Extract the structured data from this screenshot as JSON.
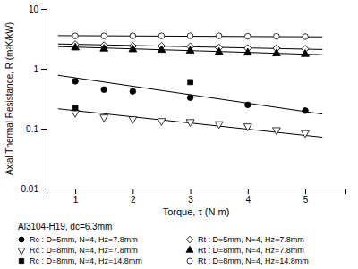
{
  "chart_data": {
    "type": "scatter",
    "xlabel": "Torque, τ (N m)",
    "ylabel": "Axial Thermal Resistance, R (m²K/kW)",
    "annotations": [
      "Al3104-H19, dc=6.3mm"
    ],
    "xlim": [
      0.5,
      5.7
    ],
    "xticks": [
      1,
      2,
      3,
      4,
      5
    ],
    "ylim": [
      0.01,
      10
    ],
    "yticks": [
      0.01,
      0.1,
      1,
      10
    ],
    "log": "y",
    "grid": false,
    "legend": "bottom",
    "color": "#000000",
    "series": [
      {
        "name": "Rc : D=5mm, N=4, Hz=7.8mm",
        "marker": "circle",
        "x": [
          1.0,
          1.5,
          2.0,
          3.0,
          4.0,
          5.0
        ],
        "values": [
          0.62,
          0.45,
          0.42,
          0.33,
          0.25,
          0.2
        ]
      },
      {
        "name": "Rc : D=8mm, N=4, Hz=7.8mm",
        "marker": "triangle-down-open",
        "x": [
          1.0,
          1.5,
          2.0,
          2.5,
          3.0,
          3.5,
          4.0,
          4.5,
          5.0
        ],
        "values": [
          0.185,
          0.155,
          0.145,
          0.135,
          0.13,
          0.12,
          0.11,
          0.095,
          0.085
        ]
      },
      {
        "name": "Rc : D=8mm, N=4, Hz=14.8mm",
        "marker": "square",
        "x": [
          1.0,
          3.0
        ],
        "values": [
          0.22,
          0.6
        ]
      },
      {
        "name": "Rt : D=5mm, N=4, Hz=7.8mm",
        "marker": "diamond-open",
        "x": [
          1.0,
          1.5,
          2.0,
          2.5,
          3.0,
          3.5,
          4.0,
          4.5,
          5.0
        ],
        "values": [
          2.55,
          2.45,
          2.4,
          2.4,
          2.35,
          2.25,
          2.2,
          2.2,
          2.15
        ]
      },
      {
        "name": "Rt : D=8mm, N=4, Hz=7.8mm",
        "marker": "triangle-up",
        "x": [
          1.0,
          1.5,
          2.0,
          2.5,
          3.0,
          3.5,
          4.0,
          4.5,
          5.0
        ],
        "values": [
          2.25,
          2.15,
          2.1,
          2.05,
          2.0,
          1.9,
          1.85,
          1.8,
          1.75
        ]
      },
      {
        "name": "Rt : D=8mm, N=4, Hz=14.8mm",
        "marker": "circle-open",
        "x": [
          1.0,
          1.5,
          2.0,
          2.5,
          3.0,
          3.5,
          4.0,
          4.5,
          5.0
        ],
        "values": [
          3.55,
          3.55,
          3.55,
          3.55,
          3.55,
          3.55,
          3.5,
          3.5,
          3.45
        ]
      },
      {
        "type": "line",
        "x": [
          0.7,
          5.3
        ],
        "values": [
          0.78,
          0.175
        ]
      },
      {
        "type": "line",
        "x": [
          0.7,
          5.3
        ],
        "values": [
          0.215,
          0.072
        ]
      },
      {
        "type": "line",
        "x": [
          0.7,
          5.3
        ],
        "values": [
          2.6,
          2.1
        ]
      },
      {
        "type": "line",
        "x": [
          0.7,
          5.3
        ],
        "values": [
          2.35,
          1.72
        ]
      },
      {
        "type": "line",
        "x": [
          0.7,
          5.3
        ],
        "values": [
          3.58,
          3.42
        ]
      }
    ]
  }
}
